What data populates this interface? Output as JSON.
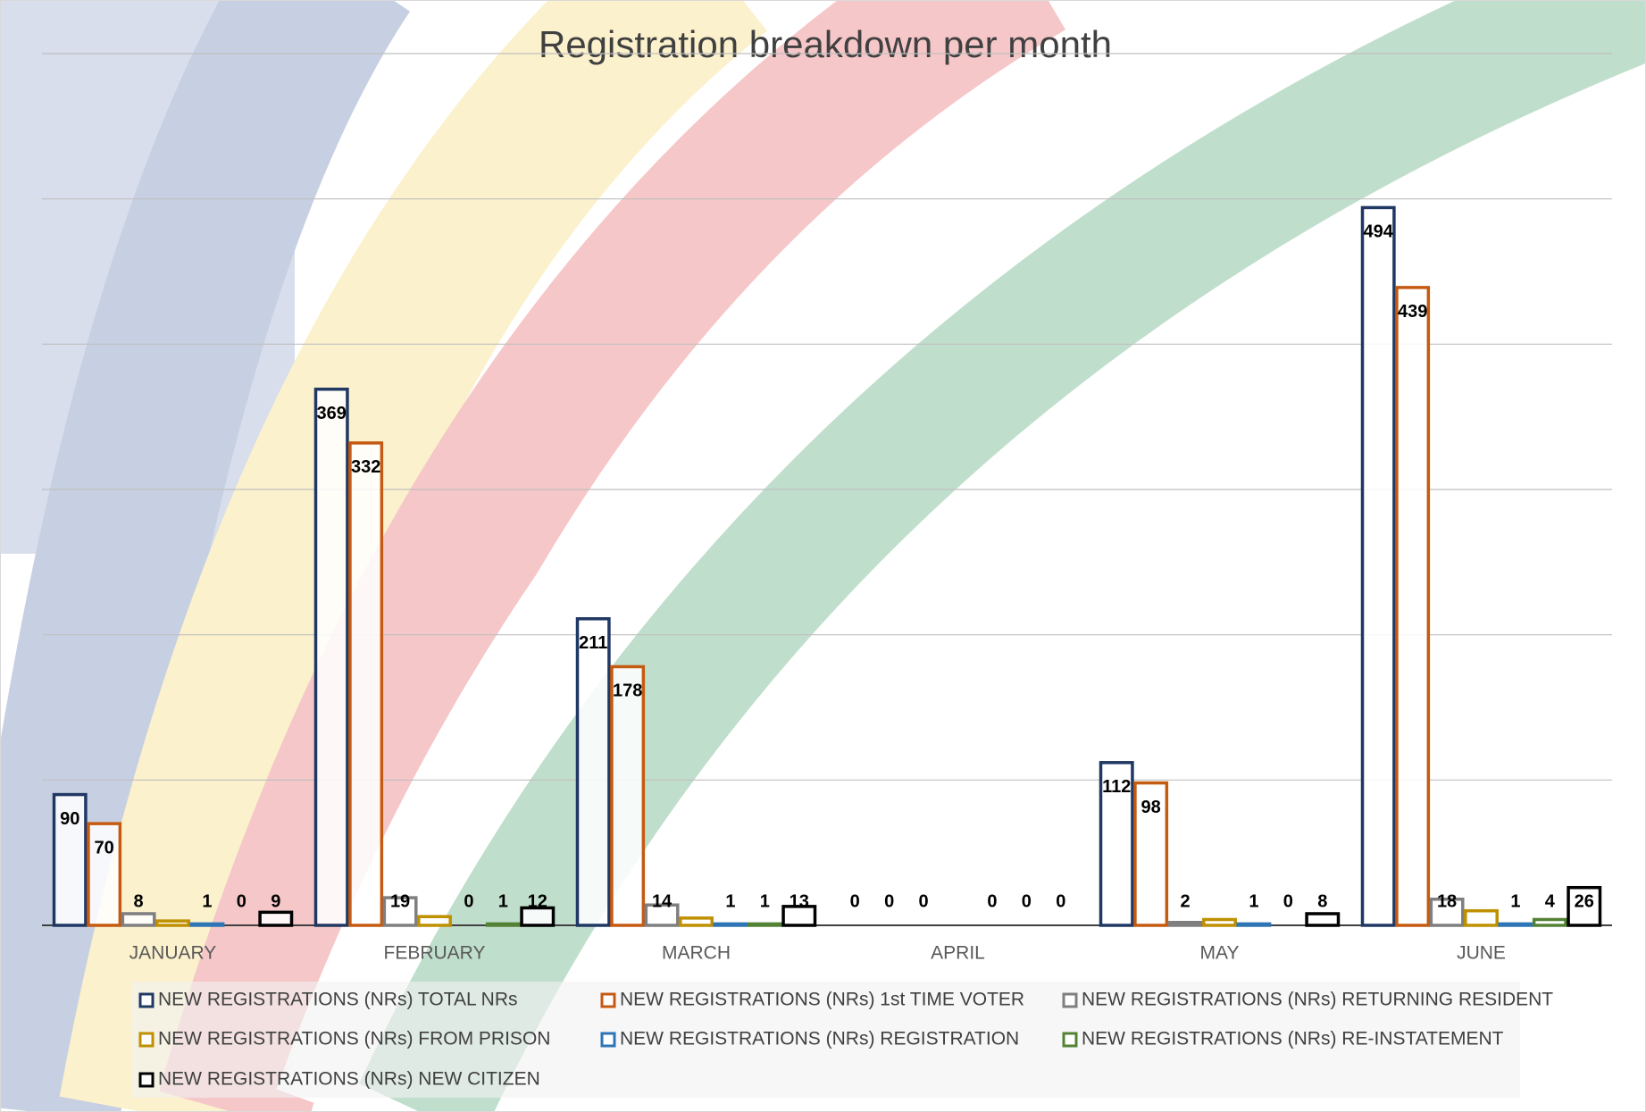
{
  "chart_data": {
    "type": "bar",
    "title": "Registration breakdown per month",
    "categories": [
      "JANUARY",
      "FEBRUARY",
      "MARCH",
      "APRIL",
      "MAY",
      "JUNE"
    ],
    "series": [
      {
        "name": "NEW REGISTRATIONS (NRs) TOTAL NRs",
        "color": "#203864",
        "values": [
          90,
          369,
          211,
          0,
          112,
          494
        ]
      },
      {
        "name": "NEW REGISTRATIONS (NRs) 1st TIME VOTER",
        "color": "#c55a11",
        "values": [
          70,
          332,
          178,
          0,
          98,
          439
        ]
      },
      {
        "name": "NEW REGISTRATIONS (NRs) RETURNING RESIDENT",
        "color": "#7f7f7f",
        "values": [
          8,
          19,
          14,
          0,
          2,
          18
        ]
      },
      {
        "name": "NEW REGISTRATIONS (NRs) FROM PRISON",
        "color": "#bf9000",
        "values": [
          3,
          6,
          5,
          0,
          4,
          10
        ],
        "data_labels": false
      },
      {
        "name": "NEW REGISTRATIONS (NRs) REGISTRATION",
        "color": "#2e75b6",
        "values": [
          1,
          0,
          1,
          0,
          1,
          1
        ]
      },
      {
        "name": "NEW REGISTRATIONS (NRs) RE-INSTATEMENT",
        "color": "#548235",
        "values": [
          0,
          1,
          1,
          0,
          0,
          4
        ]
      },
      {
        "name": "NEW REGISTRATIONS (NRs) NEW CITIZEN",
        "color": "#000000",
        "values": [
          9,
          12,
          13,
          0,
          8,
          26
        ]
      }
    ],
    "ylim": [
      0,
      600
    ],
    "yticks": [
      0,
      100,
      200,
      300,
      400,
      500,
      600
    ],
    "grid": true,
    "legend": "bottom"
  }
}
